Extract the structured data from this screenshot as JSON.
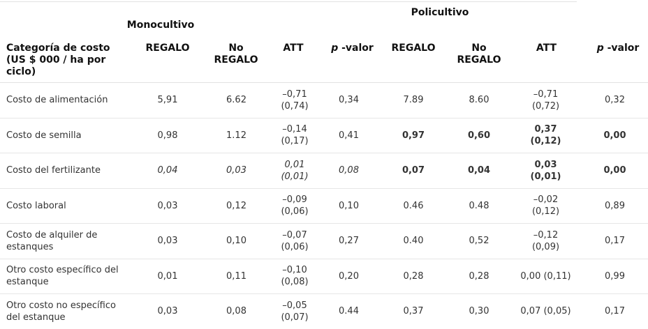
{
  "header": {
    "mono_group": "Monocultivo",
    "poly_group": "Policultivo",
    "category_label": "Categoría de costo (US $ 000 / ha por ciclo)",
    "col_regalo": "REGALO",
    "col_no_regalo_1": "No",
    "col_no_regalo_2": "REGALO",
    "col_att": "ATT",
    "col_p_symbol": "p",
    "col_p_suffix": " -valor"
  },
  "rows": [
    {
      "category": "Costo de alimentación",
      "mono_regalo": "5,91",
      "mono_no_regalo": "6.62",
      "mono_att_1": "–0,71",
      "mono_att_2": "(0,74)",
      "mono_p": "0,34",
      "poly_regalo": "7.89",
      "poly_no_regalo": "8.60",
      "poly_att_1": "–0,71",
      "poly_att_2": "(0,72)",
      "poly_p": "0,32"
    },
    {
      "category": "Costo de semilla",
      "mono_regalo": "0,98",
      "mono_no_regalo": "1.12",
      "mono_att_1": "–0,14",
      "mono_att_2": "(0,17)",
      "mono_p": "0,41",
      "poly_regalo": "0,97",
      "poly_no_regalo": "0,60",
      "poly_att_1": "0,37",
      "poly_att_2": "(0,12)",
      "poly_p": "0,00"
    },
    {
      "category": "Costo del fertilizante",
      "mono_regalo": "0,04",
      "mono_no_regalo": "0,03",
      "mono_att_1": "0,01",
      "mono_att_2": "(0,01)",
      "mono_p": "0,08",
      "poly_regalo": "0,07",
      "poly_no_regalo": "0,04",
      "poly_att_1": "0,03",
      "poly_att_2": "(0,01)",
      "poly_p": "0,00"
    },
    {
      "category": "Costo laboral",
      "mono_regalo": "0,03",
      "mono_no_regalo": "0,12",
      "mono_att_1": "–0,09",
      "mono_att_2": "(0,06)",
      "mono_p": "0,10",
      "poly_regalo": "0.46",
      "poly_no_regalo": "0.48",
      "poly_att_1": "–0,02",
      "poly_att_2": "(0,12)",
      "poly_p": "0,89"
    },
    {
      "category_1": "Costo de alquiler de",
      "category_2": "estanques",
      "mono_regalo": "0,03",
      "mono_no_regalo": "0,10",
      "mono_att_1": "–0,07",
      "mono_att_2": "(0,06)",
      "mono_p": "0,27",
      "poly_regalo": "0.40",
      "poly_no_regalo": "0,52",
      "poly_att_1": "–0,12",
      "poly_att_2": "(0,09)",
      "poly_p": "0,17"
    },
    {
      "category_1": "Otro costo específico del",
      "category_2": "estanque",
      "mono_regalo": "0,01",
      "mono_no_regalo": "0,11",
      "mono_att_1": "–0,10",
      "mono_att_2": "(0,08)",
      "mono_p": "0,20",
      "poly_regalo": "0,28",
      "poly_no_regalo": "0,28",
      "poly_att_1": "0,00 (0,11)",
      "poly_p": "0,99"
    },
    {
      "category_1": "Otro costo no específico",
      "category_2": "del estanque",
      "mono_regalo": "0,03",
      "mono_no_regalo": "0,08",
      "mono_att_1": "–0,05",
      "mono_att_2": "(0,07)",
      "mono_p": "0.44",
      "poly_regalo": "0,37",
      "poly_no_regalo": "0,30",
      "poly_att_1": "0,07 (0,05)",
      "poly_p": "0,17"
    }
  ]
}
